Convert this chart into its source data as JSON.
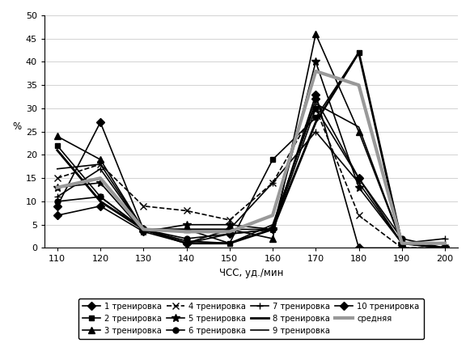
{
  "x": [
    110,
    120,
    130,
    140,
    150,
    160,
    170,
    180,
    190,
    200
  ],
  "series": {
    "1 тренировка": [
      7,
      9,
      3.5,
      1,
      4,
      4,
      32,
      15,
      1,
      0
    ],
    "2 тренировка": [
      22,
      11,
      4,
      1.5,
      1,
      19,
      28,
      42,
      1,
      0
    ],
    "3 тренировка": [
      24,
      19,
      4,
      4,
      4,
      2,
      46,
      25,
      1,
      0
    ],
    "4 тренировка": [
      15,
      18,
      9,
      8,
      6,
      14,
      30,
      7,
      0,
      0
    ],
    "5 тренировка": [
      13,
      14,
      3.5,
      5,
      5,
      4,
      40,
      13,
      1,
      0
    ],
    "6 тренировка": [
      10,
      11,
      4,
      2,
      3,
      4,
      30,
      15,
      2,
      0
    ],
    "7 тренировка": [
      11,
      17,
      4,
      4,
      4,
      14,
      25,
      14,
      1,
      2
    ],
    "8 тренировка": [
      21,
      10,
      4,
      1,
      1,
      4,
      27,
      42,
      1,
      0
    ],
    "9 тренировка": [
      17,
      18,
      4,
      4,
      1,
      5,
      31,
      26,
      1,
      0
    ],
    "10 тренировка": [
      9,
      27,
      4,
      1,
      3,
      4,
      33,
      0,
      0,
      0
    ],
    "средняя": [
      13,
      15,
      4,
      3.5,
      3.5,
      7,
      38,
      35,
      1,
      1
    ]
  },
  "styles": {
    "1 тренировка": {
      "marker": "D",
      "color": "#000000",
      "ls": "-",
      "lw": 1.2,
      "ms": 5,
      "mfc": "#000000"
    },
    "2 тренировка": {
      "marker": "s",
      "color": "#000000",
      "ls": "-",
      "lw": 1.2,
      "ms": 5,
      "mfc": "#000000"
    },
    "3 тренировка": {
      "marker": "^",
      "color": "#000000",
      "ls": "-",
      "lw": 1.2,
      "ms": 6,
      "mfc": "#000000"
    },
    "4 тренировка": {
      "marker": "x",
      "color": "#000000",
      "ls": "--",
      "lw": 1.2,
      "ms": 6,
      "mfc": "#000000"
    },
    "5 тренировка": {
      "marker": "*",
      "color": "#000000",
      "ls": "-",
      "lw": 1.2,
      "ms": 7,
      "mfc": "#000000"
    },
    "6 тренировка": {
      "marker": "o",
      "color": "#000000",
      "ls": "-",
      "lw": 1.2,
      "ms": 5,
      "mfc": "#000000"
    },
    "7 тренировка": {
      "marker": "+",
      "color": "#000000",
      "ls": "-",
      "lw": 1.2,
      "ms": 6,
      "mfc": "#000000"
    },
    "8 тренировка": {
      "marker": null,
      "color": "#000000",
      "ls": "-",
      "lw": 2.0,
      "ms": 0,
      "mfc": "#000000"
    },
    "9 тренировка": {
      "marker": null,
      "color": "#000000",
      "ls": "-",
      "lw": 1.2,
      "ms": 0,
      "mfc": "#000000"
    },
    "10 тренировка": {
      "marker": "D",
      "color": "#000000",
      "ls": "-",
      "lw": 1.2,
      "ms": 5,
      "mfc": "#000000"
    },
    "средняя": {
      "marker": null,
      "color": "#999999",
      "ls": "-",
      "lw": 3.0,
      "ms": 0,
      "mfc": "#999999"
    }
  },
  "legend_order": [
    "1 тренировка",
    "2 тренировка",
    "3 тренировка",
    "4 тренировка",
    "5 тренировка",
    "6 тренировка",
    "7 тренировка",
    "8 тренировка",
    "9 тренировка",
    "10 тренировка",
    "средняя"
  ],
  "xlabel": "ЧСС, уд./мин",
  "ylabel": "%",
  "ylim": [
    0,
    50
  ],
  "xlim": [
    107,
    203
  ],
  "yticks": [
    0,
    5,
    10,
    15,
    20,
    25,
    30,
    35,
    40,
    45,
    50
  ],
  "xticks": [
    110,
    120,
    130,
    140,
    150,
    160,
    170,
    180,
    190,
    200
  ],
  "background_color": "#ffffff",
  "fontsize": 8.5
}
